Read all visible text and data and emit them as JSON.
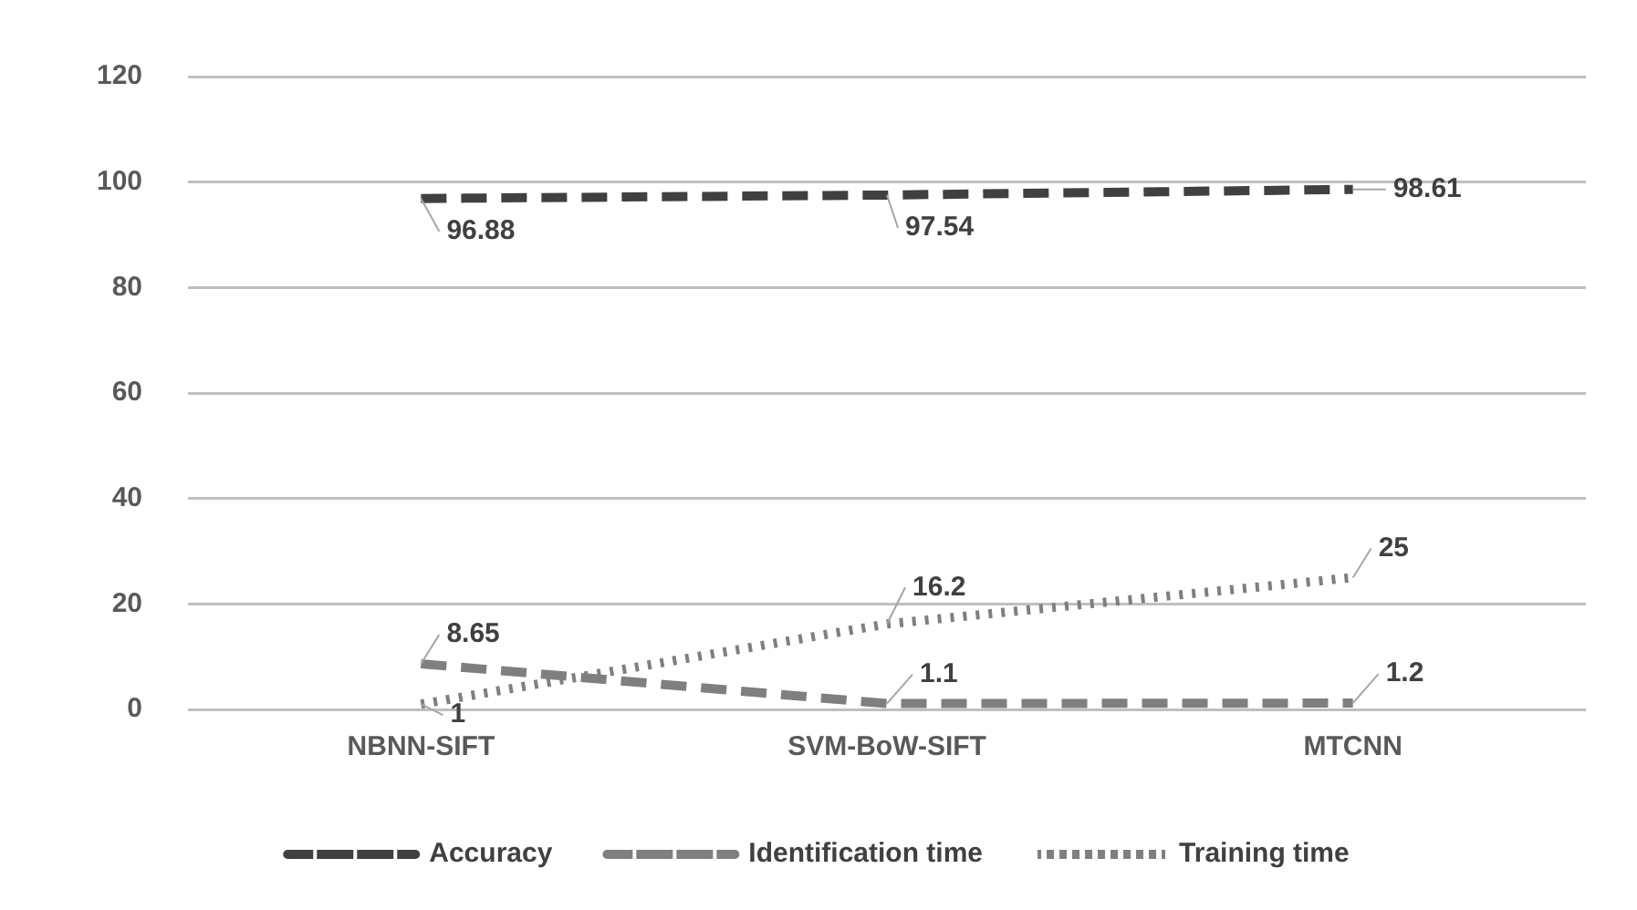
{
  "chart_data": {
    "type": "line",
    "categories": [
      "NBNN-SIFT",
      "SVM-BoW-SIFT",
      "MTCNN"
    ],
    "series": [
      {
        "name": "Accuracy",
        "color": "#404040",
        "line_style": "dashed",
        "values": [
          96.88,
          97.54,
          98.61
        ]
      },
      {
        "name": "Identification time",
        "color": "#7f7f7f",
        "line_style": "dashed",
        "values": [
          8.65,
          1.1,
          1.2
        ]
      },
      {
        "name": "Training time",
        "color": "#7f7f7f",
        "line_style": "dotted",
        "values": [
          1,
          16.2,
          25
        ]
      }
    ],
    "ylim": [
      0,
      120
    ],
    "yticks": [
      0,
      20,
      40,
      60,
      80,
      100,
      120
    ],
    "grid": "y",
    "legend": "bottom",
    "marker": "none",
    "data_labels": true
  }
}
